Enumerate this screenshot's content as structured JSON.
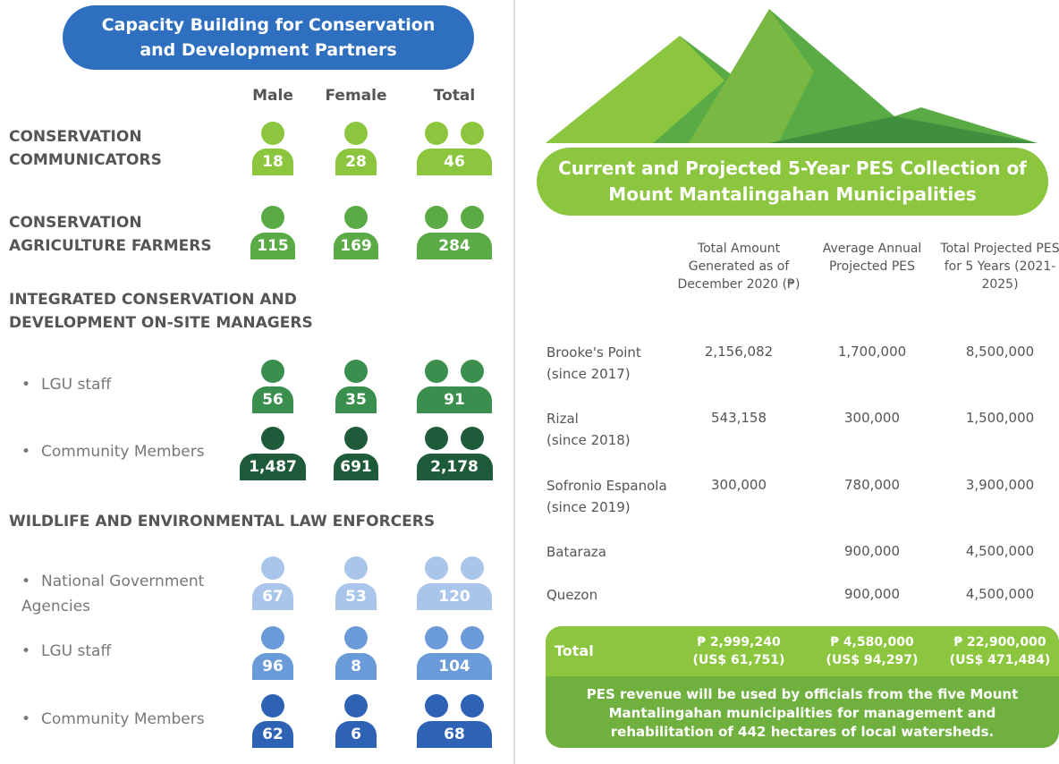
{
  "left": {
    "title": "Capacity Building for Conservation and Development Partners",
    "columns": [
      "Male",
      "Female",
      "Total"
    ],
    "sections": [
      {
        "heading": "CONSERVATION COMMUNICATORS",
        "values": [
          18,
          28,
          46
        ]
      },
      {
        "heading": "CONSERVATION AGRICULTURE FARMERS",
        "values": [
          115,
          169,
          284
        ]
      },
      {
        "heading": "INTEGRATED CONSERVATION AND DEVELOPMENT ON-SITE MANAGERS",
        "rows": [
          {
            "label": "LGU staff",
            "values": [
              56,
              35,
              91
            ]
          },
          {
            "label": "Community Members",
            "values": [
              "1,487",
              691,
              "2,178"
            ]
          }
        ]
      },
      {
        "heading": "WILDLIFE AND ENVIRONMENTAL LAW ENFORCERS",
        "rows": [
          {
            "label": "National Government Agencies",
            "values": [
              67,
              53,
              120
            ]
          },
          {
            "label": "LGU staff",
            "values": [
              96,
              8,
              104
            ]
          },
          {
            "label": "Community Members",
            "values": [
              62,
              6,
              68
            ]
          }
        ]
      }
    ]
  },
  "right": {
    "title": "Current and Projected 5-Year PES Collection of Mount Mantalingahan Municipalities",
    "headers": [
      "Total Amount Generated as of December 2020 (₱)",
      "Average Annual Projected PES",
      "Total Projected PES for 5 Years (2021-2025)"
    ],
    "rows": [
      {
        "name": "Brooke's Point",
        "since": "(since 2017)",
        "values": [
          "2,156,082",
          "1,700,000",
          "8,500,000"
        ]
      },
      {
        "name": "Rizal",
        "since": "(since 2018)",
        "values": [
          "543,158",
          "300,000",
          "1,500,000"
        ]
      },
      {
        "name": "Sofronio Espanola",
        "since": "(since 2019)",
        "values": [
          "300,000",
          "780,000",
          "3,900,000"
        ]
      },
      {
        "name": "Bataraza",
        "since": null,
        "values": [
          null,
          "900,000",
          "4,500,000"
        ]
      },
      {
        "name": "Quezon",
        "since": null,
        "values": [
          null,
          "900,000",
          "4,500,000"
        ]
      }
    ],
    "total": {
      "label": "Total",
      "cells": [
        {
          "amount": "₱ 2,999,240",
          "usd": "(US$ 61,751)"
        },
        {
          "amount": "₱ 4,580,000",
          "usd": "(US$ 94,297)"
        },
        {
          "amount": "₱ 22,900,000",
          "usd": "(US$ 471,484)"
        }
      ]
    },
    "note": "PES revenue will be used by officials from the five Mount Mantalingahan municipalities for management and rehabilitation of 442 hectares of local watersheds."
  }
}
